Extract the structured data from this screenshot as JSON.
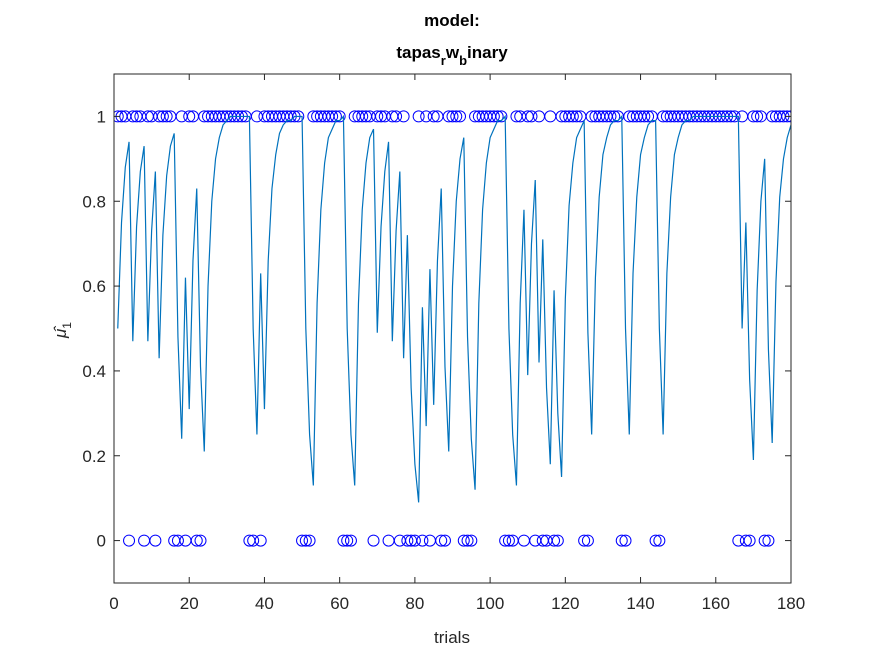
{
  "chart_data": {
    "type": "line",
    "title": [
      "model:",
      [
        "tapas",
        "r",
        "w",
        "b",
        "inary"
      ]
    ],
    "xlabel": "trials",
    "ylabel": [
      "μ̂",
      "1"
    ],
    "xlim": [
      0,
      180
    ],
    "xticks": [
      0,
      20,
      40,
      60,
      80,
      100,
      120,
      140,
      160,
      180
    ],
    "ylim": [
      -0.1,
      1.1
    ],
    "yticks": [
      0,
      0.2,
      0.4,
      0.6,
      0.8,
      1
    ],
    "x": [
      1,
      2,
      3,
      4,
      5,
      6,
      7,
      8,
      9,
      10,
      11,
      12,
      13,
      14,
      15,
      16,
      17,
      18,
      19,
      20,
      21,
      22,
      23,
      24,
      25,
      26,
      27,
      28,
      29,
      30,
      31,
      32,
      33,
      34,
      35,
      36,
      37,
      38,
      39,
      40,
      41,
      42,
      43,
      44,
      45,
      46,
      47,
      48,
      49,
      50,
      51,
      52,
      53,
      54,
      55,
      56,
      57,
      58,
      59,
      60,
      61,
      62,
      63,
      64,
      65,
      66,
      67,
      68,
      69,
      70,
      71,
      72,
      73,
      74,
      75,
      76,
      77,
      78,
      79,
      80,
      81,
      82,
      83,
      84,
      85,
      86,
      87,
      88,
      89,
      90,
      91,
      92,
      93,
      94,
      95,
      96,
      97,
      98,
      99,
      100,
      101,
      102,
      103,
      104,
      105,
      106,
      107,
      108,
      109,
      110,
      111,
      112,
      113,
      114,
      115,
      116,
      117,
      118,
      119,
      120,
      121,
      122,
      123,
      124,
      125,
      126,
      127,
      128,
      129,
      130,
      131,
      132,
      133,
      134,
      135,
      136,
      137,
      138,
      139,
      140,
      141,
      142,
      143,
      144,
      145,
      146,
      147,
      148,
      149,
      150,
      151,
      152,
      153,
      154,
      155,
      156,
      157,
      158,
      159,
      160,
      161,
      162,
      163,
      164,
      165,
      166,
      167,
      168,
      169,
      170,
      171,
      172,
      173,
      174,
      175,
      176,
      177,
      178,
      179,
      180
    ],
    "series": [
      {
        "color": "#0000ff",
        "marker": "circle",
        "linestyle": "none",
        "values": [
          1,
          1,
          1,
          0,
          1,
          1,
          1,
          0,
          1,
          1,
          0,
          1,
          1,
          1,
          1,
          0,
          0,
          1,
          0,
          1,
          1,
          0,
          0,
          1,
          1,
          1,
          1,
          1,
          1,
          1,
          1,
          1,
          1,
          1,
          1,
          0,
          0,
          1,
          0,
          1,
          1,
          1,
          1,
          1,
          1,
          1,
          1,
          1,
          1,
          0,
          0,
          0,
          1,
          1,
          1,
          1,
          1,
          1,
          1,
          1,
          0,
          0,
          0,
          1,
          1,
          1,
          1,
          1,
          0,
          1,
          1,
          1,
          0,
          1,
          1,
          0,
          1,
          0,
          0,
          0,
          1,
          0,
          1,
          0,
          1,
          1,
          0,
          0,
          1,
          1,
          1,
          1,
          0,
          0,
          0,
          1,
          1,
          1,
          1,
          1,
          1,
          1,
          1,
          0,
          0,
          0,
          1,
          1,
          0,
          1,
          1,
          0,
          1,
          0,
          0,
          1,
          0,
          0,
          1,
          1,
          1,
          1,
          1,
          1,
          0,
          0,
          1,
          1,
          1,
          1,
          1,
          1,
          1,
          1,
          0,
          0,
          1,
          1,
          1,
          1,
          1,
          1,
          1,
          0,
          0,
          1,
          1,
          1,
          1,
          1,
          1,
          1,
          1,
          1,
          1,
          1,
          1,
          1,
          1,
          1,
          1,
          1,
          1,
          1,
          1,
          0,
          1,
          0,
          0,
          1,
          1,
          1,
          0,
          0,
          1,
          1,
          1,
          1,
          1,
          1
        ]
      },
      {
        "color": "#0072bd",
        "marker": "none",
        "linestyle": "solid",
        "values": [
          0.5,
          0.75,
          0.88,
          0.94,
          0.47,
          0.74,
          0.87,
          0.93,
          0.47,
          0.73,
          0.87,
          0.43,
          0.72,
          0.86,
          0.93,
          0.96,
          0.48,
          0.24,
          0.62,
          0.31,
          0.66,
          0.83,
          0.41,
          0.21,
          0.6,
          0.8,
          0.9,
          0.95,
          0.98,
          0.99,
          1,
          1,
          1,
          1,
          1,
          1,
          0.5,
          0.25,
          0.63,
          0.31,
          0.66,
          0.83,
          0.91,
          0.96,
          0.98,
          0.99,
          0.99,
          1,
          1,
          1,
          0.5,
          0.25,
          0.13,
          0.56,
          0.78,
          0.89,
          0.95,
          0.97,
          0.99,
          0.99,
          1,
          0.5,
          0.25,
          0.13,
          0.56,
          0.78,
          0.89,
          0.95,
          0.97,
          0.49,
          0.74,
          0.87,
          0.94,
          0.47,
          0.73,
          0.87,
          0.43,
          0.72,
          0.36,
          0.18,
          0.09,
          0.55,
          0.27,
          0.64,
          0.32,
          0.66,
          0.83,
          0.41,
          0.21,
          0.6,
          0.8,
          0.9,
          0.95,
          0.48,
          0.24,
          0.12,
          0.56,
          0.78,
          0.89,
          0.95,
          0.97,
          0.99,
          0.99,
          1,
          0.5,
          0.25,
          0.13,
          0.56,
          0.78,
          0.39,
          0.7,
          0.85,
          0.42,
          0.71,
          0.36,
          0.18,
          0.59,
          0.3,
          0.15,
          0.57,
          0.79,
          0.89,
          0.95,
          0.97,
          0.99,
          0.49,
          0.25,
          0.62,
          0.81,
          0.91,
          0.95,
          0.98,
          0.99,
          0.99,
          1,
          0.5,
          0.25,
          0.63,
          0.81,
          0.91,
          0.95,
          0.98,
          0.99,
          0.99,
          0.5,
          0.25,
          0.63,
          0.81,
          0.91,
          0.95,
          0.98,
          0.99,
          0.99,
          1,
          1,
          1,
          1,
          1,
          1,
          1,
          1,
          1,
          1,
          1,
          1,
          1,
          0.5,
          0.75,
          0.38,
          0.19,
          0.59,
          0.8,
          0.9,
          0.45,
          0.23,
          0.61,
          0.81,
          0.9,
          0.95,
          0.98
        ]
      }
    ]
  }
}
